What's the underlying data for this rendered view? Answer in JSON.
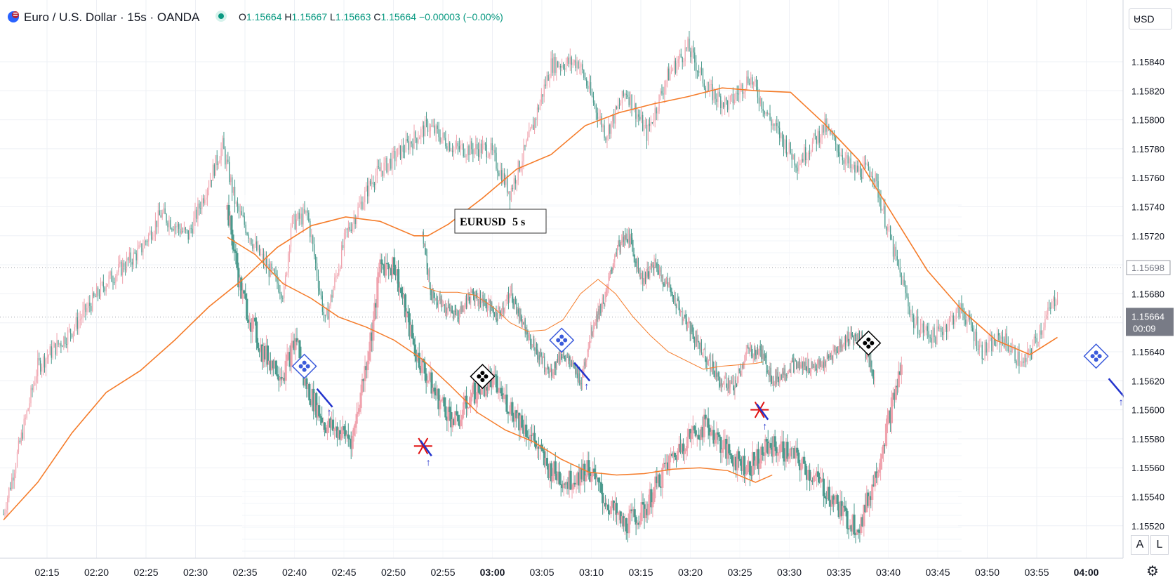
{
  "header": {
    "title": "Euro / U.S. Dollar · 15s · OANDA",
    "open_label": "O",
    "open": "1.15664",
    "high_label": "H",
    "high": "1.15667",
    "low_label": "L",
    "low": "1.15663",
    "close_label": "C",
    "close": "1.15664",
    "change": "−0.00003 (−0.00%)",
    "icons": {
      "logo": "eur-usd-flag-icon",
      "status": "market-open-dot-icon"
    }
  },
  "axis": {
    "currency": "USD",
    "price_ticks": [
      "1.15840",
      "1.15820",
      "1.15800",
      "1.15780",
      "1.15760",
      "1.15740",
      "1.15720",
      "1.15700",
      "1.15680",
      "1.15660",
      "1.15640",
      "1.15620",
      "1.15600",
      "1.15580",
      "1.15560",
      "1.15540",
      "1.15520"
    ],
    "time_ticks": [
      "02:15",
      "02:20",
      "02:25",
      "02:30",
      "02:35",
      "02:40",
      "02:45",
      "02:50",
      "02:55",
      "03:00",
      "03:05",
      "03:10",
      "03:15",
      "03:20",
      "03:25",
      "03:30",
      "03:35",
      "03:40",
      "03:45",
      "03:50",
      "03:55",
      "04:00"
    ],
    "dotted_price": "1.15698",
    "current_price": "1.15664",
    "countdown": "00:09",
    "auto_label": "A",
    "log_label": "L"
  },
  "inset": {
    "label_symbol": "EURUSD",
    "label_interval": "5 s"
  },
  "colors": {
    "up": "#f0a3ae",
    "down": "#4a9a8d",
    "ma": "#f57c2a",
    "axis_text": "#131722",
    "grid": "#eef0f5"
  },
  "chart_data": {
    "type": "candlestick",
    "main": {
      "interval": "15s",
      "ma_series": [
        [
          0,
          1.15524
        ],
        [
          25,
          1.1555
        ],
        [
          50,
          1.15584
        ],
        [
          75,
          1.15612
        ],
        [
          100,
          1.15627
        ],
        [
          125,
          1.15648
        ],
        [
          150,
          1.15671
        ],
        [
          175,
          1.1569
        ],
        [
          200,
          1.15712
        ],
        [
          225,
          1.15727
        ],
        [
          250,
          1.15733
        ],
        [
          275,
          1.1573
        ],
        [
          300,
          1.1572
        ],
        [
          310,
          1.1572
        ],
        [
          325,
          1.15728
        ],
        [
          350,
          1.15746
        ],
        [
          375,
          1.15766
        ],
        [
          400,
          1.15776
        ],
        [
          425,
          1.15796
        ],
        [
          450,
          1.15805
        ],
        [
          475,
          1.15811
        ],
        [
          500,
          1.15816
        ],
        [
          525,
          1.15822
        ],
        [
          550,
          1.1582
        ],
        [
          575,
          1.15819
        ],
        [
          600,
          1.15797
        ],
        [
          625,
          1.15772
        ],
        [
          650,
          1.15734
        ],
        [
          675,
          1.15696
        ],
        [
          700,
          1.15669
        ],
        [
          725,
          1.15648
        ],
        [
          750,
          1.15638
        ],
        [
          770,
          1.1565
        ]
      ],
      "keypoints": [
        [
          0,
          1.15528
        ],
        [
          25,
          1.1563
        ],
        [
          50,
          1.15655
        ],
        [
          75,
          1.15688
        ],
        [
          100,
          1.1571
        ],
        [
          115,
          1.15735
        ],
        [
          135,
          1.1572
        ],
        [
          160,
          1.15782
        ],
        [
          170,
          1.1574
        ],
        [
          185,
          1.1571
        ],
        [
          205,
          1.1568
        ],
        [
          210,
          1.15728
        ],
        [
          222,
          1.15735
        ],
        [
          235,
          1.1566
        ],
        [
          250,
          1.1572
        ],
        [
          270,
          1.1576
        ],
        [
          290,
          1.15778
        ],
        [
          310,
          1.15796
        ],
        [
          330,
          1.1578
        ],
        [
          355,
          1.1578
        ],
        [
          370,
          1.1575
        ],
        [
          385,
          1.1579
        ],
        [
          400,
          1.15838
        ],
        [
          420,
          1.1584
        ],
        [
          440,
          1.1579
        ],
        [
          455,
          1.1582
        ],
        [
          470,
          1.1579
        ],
        [
          485,
          1.1583
        ],
        [
          500,
          1.1585
        ],
        [
          515,
          1.1582
        ],
        [
          530,
          1.1581
        ],
        [
          545,
          1.1583
        ],
        [
          560,
          1.158
        ],
        [
          580,
          1.1577
        ],
        [
          600,
          1.15795
        ],
        [
          620,
          1.15765
        ],
        [
          635,
          1.15765
        ],
        [
          650,
          1.1571
        ],
        [
          665,
          1.1566
        ],
        [
          680,
          1.1565
        ],
        [
          700,
          1.1567
        ],
        [
          715,
          1.1564
        ],
        [
          730,
          1.1565
        ],
        [
          745,
          1.1563
        ],
        [
          770,
          1.1568
        ]
      ]
    },
    "inset": {
      "interval": "5 s",
      "ma_series": [
        [
          0,
          1.15719
        ],
        [
          20,
          1.15707
        ],
        [
          40,
          1.15687
        ],
        [
          60,
          1.15677
        ],
        [
          80,
          1.15664
        ],
        [
          100,
          1.15657
        ],
        [
          120,
          1.15648
        ],
        [
          140,
          1.15635
        ],
        [
          160,
          1.15617
        ],
        [
          180,
          1.15598
        ],
        [
          200,
          1.15586
        ],
        [
          220,
          1.15578
        ],
        [
          240,
          1.15566
        ],
        [
          260,
          1.15557
        ],
        [
          280,
          1.15555
        ],
        [
          300,
          1.15556
        ],
        [
          320,
          1.15559
        ],
        [
          340,
          1.1556
        ],
        [
          360,
          1.15558
        ],
        [
          380,
          1.1555
        ],
        [
          392,
          1.15555
        ]
      ],
      "keypoints": [
        [
          0,
          1.15738
        ],
        [
          10,
          1.1568
        ],
        [
          25,
          1.1564
        ],
        [
          40,
          1.15625
        ],
        [
          50,
          1.1565
        ],
        [
          55,
          1.1562
        ],
        [
          70,
          1.1559
        ],
        [
          90,
          1.1558
        ],
        [
          105,
          1.1566
        ],
        [
          110,
          1.157
        ],
        [
          120,
          1.157
        ],
        [
          135,
          1.1564
        ],
        [
          150,
          1.1561
        ],
        [
          165,
          1.1559
        ],
        [
          175,
          1.1561
        ],
        [
          190,
          1.1562
        ],
        [
          205,
          1.156
        ],
        [
          220,
          1.1558
        ],
        [
          230,
          1.1556
        ],
        [
          245,
          1.1555
        ],
        [
          260,
          1.1556
        ],
        [
          270,
          1.1554
        ],
        [
          285,
          1.1552
        ],
        [
          300,
          1.1553
        ],
        [
          315,
          1.1556
        ],
        [
          330,
          1.1558
        ],
        [
          345,
          1.1559
        ],
        [
          360,
          1.1557
        ],
        [
          375,
          1.1556
        ],
        [
          390,
          1.15575
        ],
        [
          405,
          1.1557
        ],
        [
          420,
          1.15555
        ],
        [
          435,
          1.1554
        ],
        [
          445,
          1.15525
        ],
        [
          455,
          1.1552
        ],
        [
          465,
          1.1555
        ],
        [
          475,
          1.1559
        ],
        [
          485,
          1.1563
        ]
      ]
    },
    "inset_sub": {
      "interval": "5 s",
      "ma_series": [
        [
          0,
          1.15685
        ],
        [
          20,
          1.15681
        ],
        [
          40,
          1.15681
        ],
        [
          60,
          1.15679
        ],
        [
          80,
          1.15671
        ],
        [
          100,
          1.1566
        ],
        [
          120,
          1.15654
        ],
        [
          140,
          1.15655
        ],
        [
          160,
          1.15662
        ],
        [
          180,
          1.1568
        ],
        [
          200,
          1.1569
        ],
        [
          220,
          1.1568
        ],
        [
          240,
          1.15664
        ],
        [
          260,
          1.15651
        ],
        [
          280,
          1.1564
        ],
        [
          300,
          1.15634
        ],
        [
          320,
          1.15628
        ],
        [
          340,
          1.1563
        ],
        [
          360,
          1.15631
        ],
        [
          380,
          1.15632
        ],
        [
          388,
          1.15633
        ]
      ],
      "keypoints": [
        [
          0,
          1.1572
        ],
        [
          10,
          1.1568
        ],
        [
          25,
          1.1567
        ],
        [
          40,
          1.15665
        ],
        [
          55,
          1.1568
        ],
        [
          70,
          1.15675
        ],
        [
          85,
          1.15665
        ],
        [
          100,
          1.1568
        ],
        [
          115,
          1.1566
        ],
        [
          130,
          1.1564
        ],
        [
          145,
          1.15625
        ],
        [
          160,
          1.1564
        ],
        [
          180,
          1.1562
        ],
        [
          195,
          1.1566
        ],
        [
          210,
          1.1568
        ],
        [
          220,
          1.1571
        ],
        [
          235,
          1.1572
        ],
        [
          250,
          1.1569
        ],
        [
          265,
          1.157
        ],
        [
          285,
          1.1568
        ],
        [
          300,
          1.1566
        ],
        [
          320,
          1.1564
        ],
        [
          340,
          1.1562
        ],
        [
          355,
          1.15615
        ],
        [
          370,
          1.1564
        ],
        [
          385,
          1.1564
        ],
        [
          400,
          1.1562
        ],
        [
          420,
          1.1563
        ],
        [
          440,
          1.1563
        ],
        [
          455,
          1.1563
        ],
        [
          470,
          1.1564
        ],
        [
          485,
          1.1565
        ],
        [
          500,
          1.1565
        ],
        [
          515,
          1.1562
        ]
      ]
    },
    "markers": [
      {
        "kind": "diamond-blue",
        "t": "02:41",
        "price": 1.1563
      },
      {
        "kind": "star-red",
        "t": "02:53",
        "price": 1.15575
      },
      {
        "kind": "diamond-black",
        "t": "02:59",
        "price": 1.15623
      },
      {
        "kind": "diamond-blue",
        "t": "03:07",
        "price": 1.15648
      },
      {
        "kind": "star-red",
        "t": "03:27",
        "price": 1.156
      },
      {
        "kind": "diamond-black",
        "t": "03:38",
        "price": 1.15646
      },
      {
        "kind": "diamond-blue",
        "t": "04:01",
        "price": 1.15637
      }
    ],
    "grid": true
  }
}
